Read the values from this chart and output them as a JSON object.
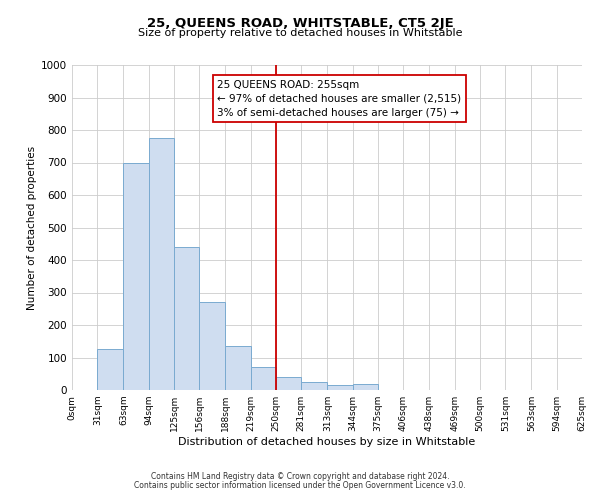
{
  "title": "25, QUEENS ROAD, WHITSTABLE, CT5 2JE",
  "subtitle": "Size of property relative to detached houses in Whitstable",
  "xlabel": "Distribution of detached houses by size in Whitstable",
  "ylabel": "Number of detached properties",
  "footnote1": "Contains HM Land Registry data © Crown copyright and database right 2024.",
  "footnote2": "Contains public sector information licensed under the Open Government Licence v3.0.",
  "bin_edges": [
    0,
    31,
    63,
    94,
    125,
    156,
    188,
    219,
    250,
    281,
    313,
    344,
    375,
    406,
    438,
    469,
    500,
    531,
    563,
    594,
    625
  ],
  "bar_heights": [
    0,
    125,
    700,
    775,
    440,
    270,
    135,
    70,
    40,
    25,
    15,
    20,
    0,
    0,
    0,
    0,
    0,
    0,
    0,
    0
  ],
  "bar_color": "#cfddf0",
  "bar_edge_color": "#7aaad0",
  "vline_x": 250,
  "vline_color": "#cc0000",
  "annotation_line1": "25 QUEENS ROAD: 255sqm",
  "annotation_line2": "← 97% of detached houses are smaller (2,515)",
  "annotation_line3": "3% of semi-detached houses are larger (75) →",
  "box_edge_color": "#cc0000",
  "ylim": [
    0,
    1000
  ],
  "xlim": [
    0,
    625
  ],
  "tick_labels": [
    "0sqm",
    "31sqm",
    "63sqm",
    "94sqm",
    "125sqm",
    "156sqm",
    "188sqm",
    "219sqm",
    "250sqm",
    "281sqm",
    "313sqm",
    "344sqm",
    "375sqm",
    "406sqm",
    "438sqm",
    "469sqm",
    "500sqm",
    "531sqm",
    "563sqm",
    "594sqm",
    "625sqm"
  ],
  "yticks": [
    0,
    100,
    200,
    300,
    400,
    500,
    600,
    700,
    800,
    900,
    1000
  ],
  "background_color": "#ffffff",
  "grid_color": "#cccccc",
  "title_fontsize": 9.5,
  "subtitle_fontsize": 8,
  "ylabel_fontsize": 7.5,
  "xlabel_fontsize": 8,
  "tick_fontsize": 6.5,
  "ytick_fontsize": 7.5,
  "footnote_fontsize": 5.5,
  "annot_fontsize": 7.5
}
